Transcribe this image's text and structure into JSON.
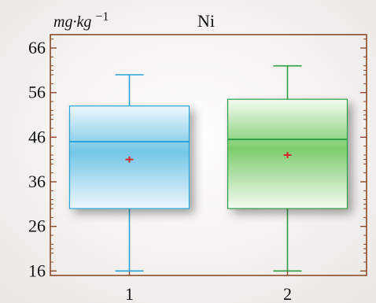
{
  "chart_data": {
    "type": "box",
    "title": "Ni",
    "ylabel": "mg·kg−1",
    "xlabel": "",
    "ylim": [
      15,
      69
    ],
    "yticks": [
      16,
      26,
      36,
      46,
      56,
      66
    ],
    "categories": [
      "1",
      "2"
    ],
    "boxes": [
      {
        "category": "1",
        "min": 16,
        "q1": 30,
        "median": 45,
        "mean": 41,
        "q3": 53,
        "max": 60,
        "color": "#2aa3d8",
        "fill_light": "#eef8fd",
        "fill_dark": "#74c6e6"
      },
      {
        "category": "2",
        "min": 16,
        "q1": 30,
        "median": 45.5,
        "mean": 42,
        "q3": 54.5,
        "max": 62,
        "color": "#2f9d45",
        "fill_light": "#f4fbf2",
        "fill_dark": "#7dcc6e"
      }
    ],
    "mean_marker_color": "#d9262b",
    "frame_color": "#8b4a2b",
    "grid": false,
    "legend": "none"
  }
}
